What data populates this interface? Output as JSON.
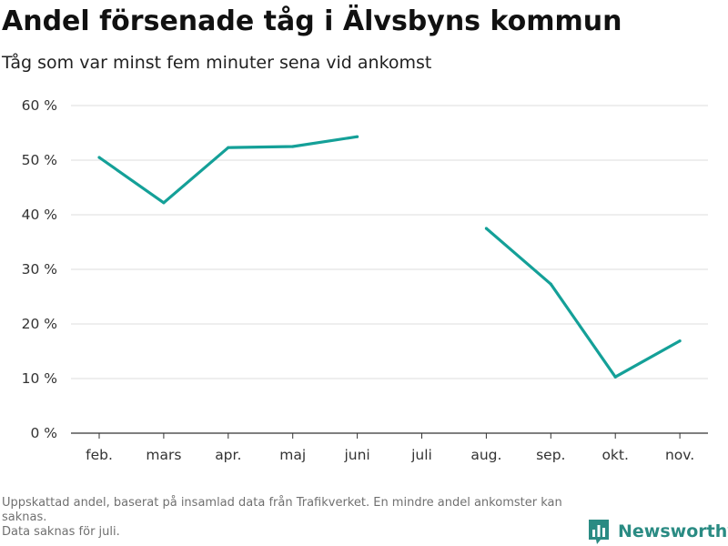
{
  "chart_data": {
    "type": "line",
    "title": "Andel försenade tåg i Älvsbyns kommun",
    "subtitle": "Tåg som var minst fem minuter sena vid ankomst",
    "categories": [
      "feb.",
      "mars",
      "apr.",
      "maj",
      "juni",
      "juli",
      "aug.",
      "sep.",
      "okt.",
      "nov."
    ],
    "series": [
      {
        "values": [
          50.5,
          42.2,
          52.3,
          52.5,
          54.3,
          null,
          37.5,
          27.3,
          10.3,
          16.9
        ],
        "color": "#14a098"
      }
    ],
    "ylim": [
      0,
      60
    ],
    "yticks": [
      0,
      10,
      20,
      30,
      40,
      50,
      60
    ],
    "ytick_labels": [
      "0 %",
      "10 %",
      "20 %",
      "30 %",
      "40 %",
      "50 %",
      "60 %"
    ],
    "grid": true,
    "gridColor": "#dddddd",
    "axisColor": "#333333"
  },
  "footnote": {
    "lines": [
      "Uppskattad andel, baserat på insamlad data från Trafikverket. En mindre andel ankomster kan saknas.",
      "Data saknas för juli."
    ]
  },
  "brand": {
    "name": "Newsworthy",
    "icon": "bar-chart-logo-icon",
    "color": "#2a8b83"
  }
}
